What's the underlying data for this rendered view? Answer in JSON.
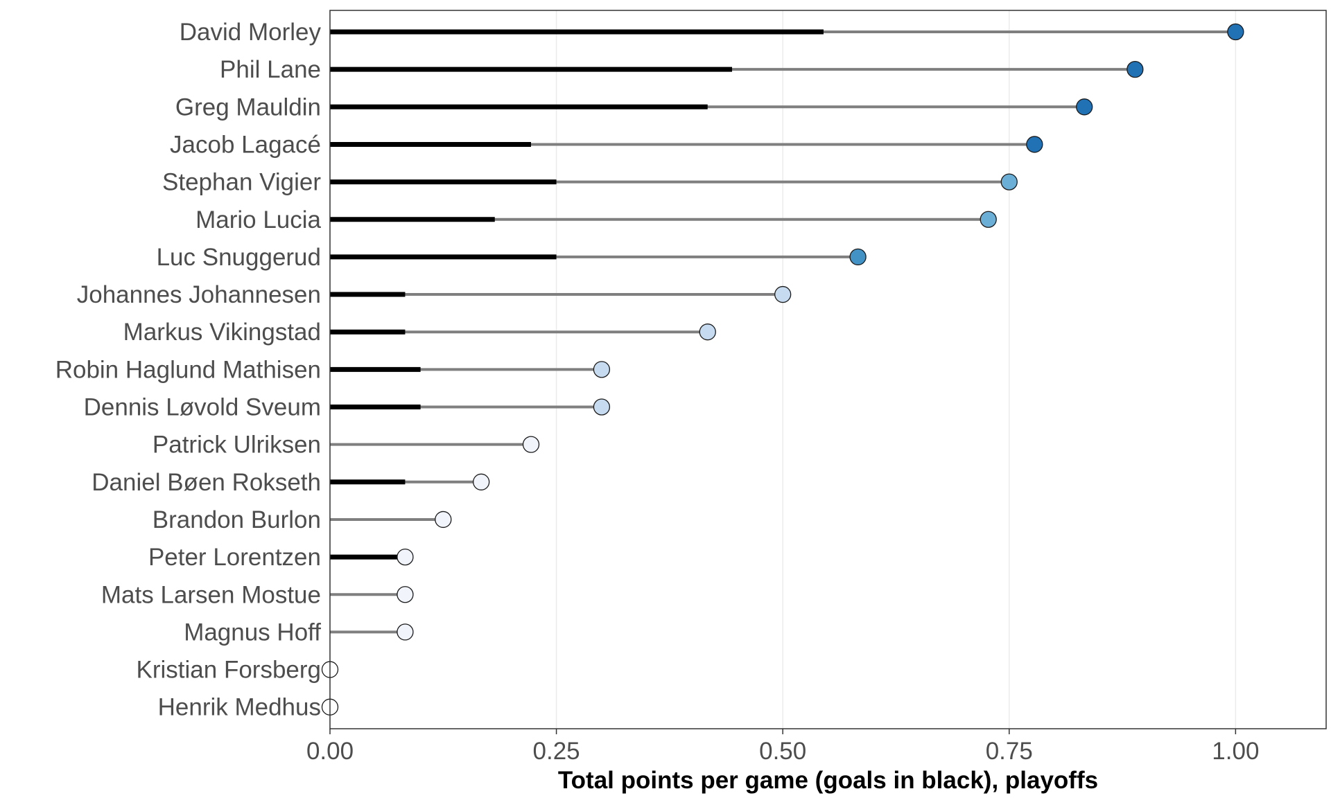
{
  "chart_data": {
    "type": "lollipop",
    "xlabel": "Total points per game (goals in black), playoffs",
    "ylabel": "",
    "xlim": [
      0,
      1.1
    ],
    "xticks": [
      0,
      0.25,
      0.5,
      0.75,
      1.0
    ],
    "xtick_labels": [
      "0.00",
      "0.25",
      "0.50",
      "0.75",
      "1.00"
    ],
    "grid": "vertical major",
    "legend": "none",
    "colors": {
      "goals_bar": "#000000",
      "points_line": "#7f7f7f",
      "dot_stroke": "#1a1a1a",
      "dot_scale": [
        "#f1f4fb",
        "#c6dbef",
        "#9ecae1",
        "#6baed6",
        "#4292c6",
        "#2171b5"
      ]
    },
    "players": [
      {
        "name": "David Morley",
        "goals": 0.545,
        "points": 1.0
      },
      {
        "name": "Phil Lane",
        "goals": 0.444,
        "points": 0.889
      },
      {
        "name": "Greg Mauldin",
        "goals": 0.417,
        "points": 0.833
      },
      {
        "name": "Jacob Lagacé",
        "goals": 0.222,
        "points": 0.778
      },
      {
        "name": "Stephan Vigier",
        "goals": 0.25,
        "points": 0.75
      },
      {
        "name": "Mario Lucia",
        "goals": 0.182,
        "points": 0.727
      },
      {
        "name": "Luc Snuggerud",
        "goals": 0.25,
        "points": 0.583
      },
      {
        "name": "Johannes Johannesen",
        "goals": 0.083,
        "points": 0.5
      },
      {
        "name": "Markus Vikingstad",
        "goals": 0.083,
        "points": 0.417
      },
      {
        "name": "Robin Haglund Mathisen",
        "goals": 0.1,
        "points": 0.3
      },
      {
        "name": "Dennis Løvold Sveum",
        "goals": 0.1,
        "points": 0.3
      },
      {
        "name": "Patrick Ulriksen",
        "goals": 0.0,
        "points": 0.222
      },
      {
        "name": "Daniel Bøen Rokseth",
        "goals": 0.083,
        "points": 0.167
      },
      {
        "name": "Brandon Burlon",
        "goals": 0.0,
        "points": 0.125
      },
      {
        "name": "Peter Lorentzen",
        "goals": 0.083,
        "points": 0.083
      },
      {
        "name": "Mats Larsen Mostue",
        "goals": 0.0,
        "points": 0.083
      },
      {
        "name": "Magnus Hoff",
        "goals": 0.0,
        "points": 0.083
      },
      {
        "name": "Kristian Forsberg",
        "goals": 0.0,
        "points": 0.0
      },
      {
        "name": "Henrik Medhus",
        "goals": 0.0,
        "points": 0.0
      }
    ]
  }
}
